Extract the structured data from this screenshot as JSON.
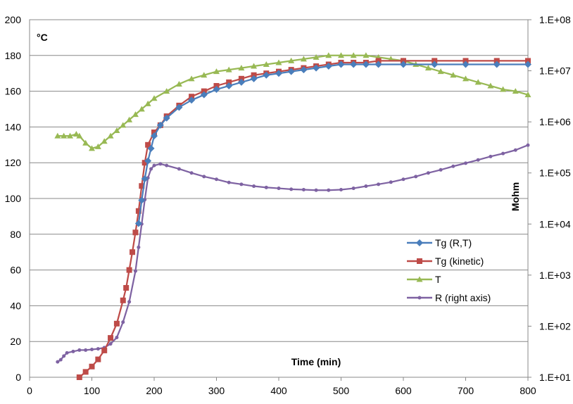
{
  "chart_data": {
    "type": "line",
    "xlabel": "Time (min)",
    "ylabel": "°C",
    "y2label": "Mohm",
    "xlim": [
      0,
      800
    ],
    "ylim": [
      0,
      200
    ],
    "y2lim_log10": [
      1,
      8
    ],
    "grid": "horizontal",
    "legend_position": "right",
    "x_ticks": [
      "0",
      "100",
      "200",
      "300",
      "400",
      "500",
      "600",
      "700",
      "800"
    ],
    "y_ticks": [
      "0",
      "20",
      "40",
      "60",
      "80",
      "100",
      "120",
      "140",
      "160",
      "180",
      "200"
    ],
    "y2_ticks": [
      "1.E+01",
      "1.E+02",
      "1.E+03",
      "1.E+04",
      "1.E+05",
      "1.E+06",
      "1.E+07",
      "1.E+08"
    ],
    "series": [
      {
        "name": "Tg (R,T)",
        "axis": "left",
        "color": "#4a7ebb",
        "marker": "diamond",
        "x": [
          175,
          180,
          185,
          190,
          195,
          200,
          210,
          220,
          240,
          260,
          280,
          300,
          320,
          340,
          360,
          380,
          400,
          420,
          440,
          460,
          480,
          500,
          520,
          540,
          560,
          600,
          650,
          700,
          750,
          800
        ],
        "y": [
          86,
          99,
          111,
          121,
          128,
          135,
          141,
          145,
          151,
          155,
          158,
          161,
          163,
          165,
          167,
          169,
          170,
          171,
          172,
          173,
          174,
          175,
          175,
          175,
          175,
          175,
          175,
          175,
          175,
          175
        ]
      },
      {
        "name": "Tg (kinetic)",
        "axis": "left",
        "color": "#be4b48",
        "marker": "square",
        "x": [
          80,
          90,
          100,
          110,
          120,
          130,
          140,
          150,
          155,
          160,
          165,
          170,
          175,
          180,
          185,
          190,
          200,
          210,
          220,
          240,
          260,
          280,
          300,
          320,
          340,
          360,
          380,
          400,
          420,
          440,
          460,
          480,
          500,
          520,
          540,
          560,
          600,
          650,
          700,
          750,
          800
        ],
        "y": [
          0,
          3,
          6,
          10,
          15,
          22,
          30,
          43,
          50,
          60,
          70,
          81,
          93,
          107,
          120,
          130,
          137,
          141,
          146,
          152,
          157,
          160,
          163,
          165,
          167,
          169,
          170,
          171,
          172,
          173,
          174,
          175,
          176,
          176,
          176,
          177,
          177,
          177,
          177,
          177,
          177
        ]
      },
      {
        "name": "T",
        "axis": "left",
        "color": "#98b954",
        "marker": "triangle",
        "x": [
          45,
          55,
          65,
          75,
          80,
          90,
          100,
          110,
          120,
          130,
          140,
          150,
          160,
          170,
          180,
          190,
          200,
          220,
          240,
          260,
          280,
          300,
          320,
          340,
          360,
          380,
          400,
          420,
          440,
          460,
          480,
          500,
          520,
          540,
          560,
          580,
          600,
          620,
          640,
          660,
          680,
          700,
          720,
          740,
          760,
          780,
          800
        ],
        "y": [
          135,
          135,
          135,
          136,
          135,
          131,
          128,
          129,
          132,
          135,
          138,
          141,
          144,
          147,
          150,
          153,
          156,
          160,
          164,
          167,
          169,
          171,
          172,
          173,
          174,
          175,
          176,
          177,
          178,
          179,
          180,
          180,
          180,
          180,
          179,
          178,
          177,
          175,
          173,
          171,
          169,
          167,
          165,
          163,
          161,
          160,
          158
        ]
      },
      {
        "name": "R (right axis)",
        "axis": "right",
        "color": "#7e62a2",
        "marker": "circle",
        "x": [
          45,
          50,
          55,
          60,
          70,
          80,
          90,
          100,
          110,
          120,
          130,
          140,
          150,
          160,
          170,
          175,
          180,
          185,
          190,
          195,
          200,
          210,
          220,
          240,
          260,
          280,
          300,
          320,
          340,
          360,
          380,
          400,
          420,
          440,
          460,
          480,
          500,
          520,
          540,
          560,
          580,
          600,
          620,
          640,
          660,
          680,
          700,
          720,
          740,
          760,
          780,
          800
        ],
        "y": [
          20,
          22,
          26,
          30,
          32,
          34,
          34,
          35,
          36,
          38,
          45,
          60,
          120,
          300,
          1200,
          3500,
          10000,
          30000,
          80000,
          120000,
          140000,
          150000,
          140000,
          120000,
          100000,
          85000,
          75000,
          65000,
          60000,
          55000,
          52000,
          50000,
          48000,
          47000,
          46000,
          46000,
          47000,
          50000,
          55000,
          60000,
          66000,
          75000,
          85000,
          100000,
          115000,
          135000,
          155000,
          180000,
          210000,
          240000,
          280000,
          350000
        ]
      }
    ]
  }
}
